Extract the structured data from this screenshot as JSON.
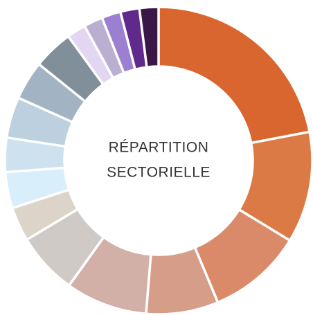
{
  "chart_data": {
    "type": "pie",
    "title_lines": [
      "RÉPARTITION",
      "SECTORIELLE"
    ],
    "values": [
      22,
      11.7,
      10,
      7.6,
      8.6,
      6.5,
      3.6,
      3.8,
      3.6,
      4.3,
      4.1,
      4.2,
      2,
      2,
      2,
      2,
      2
    ],
    "colors": [
      "#d9652f",
      "#dc7a45",
      "#da8a68",
      "#d69d88",
      "#d3b0a7",
      "#d0cac7",
      "#dcd3c9",
      "#d8eefa",
      "#cde1ef",
      "#bdd0df",
      "#a2b4c3",
      "#818f9b",
      "#e3d6f3",
      "#baaed1",
      "#9b80d2",
      "#5f2a8b",
      "#3b1747"
    ]
  }
}
